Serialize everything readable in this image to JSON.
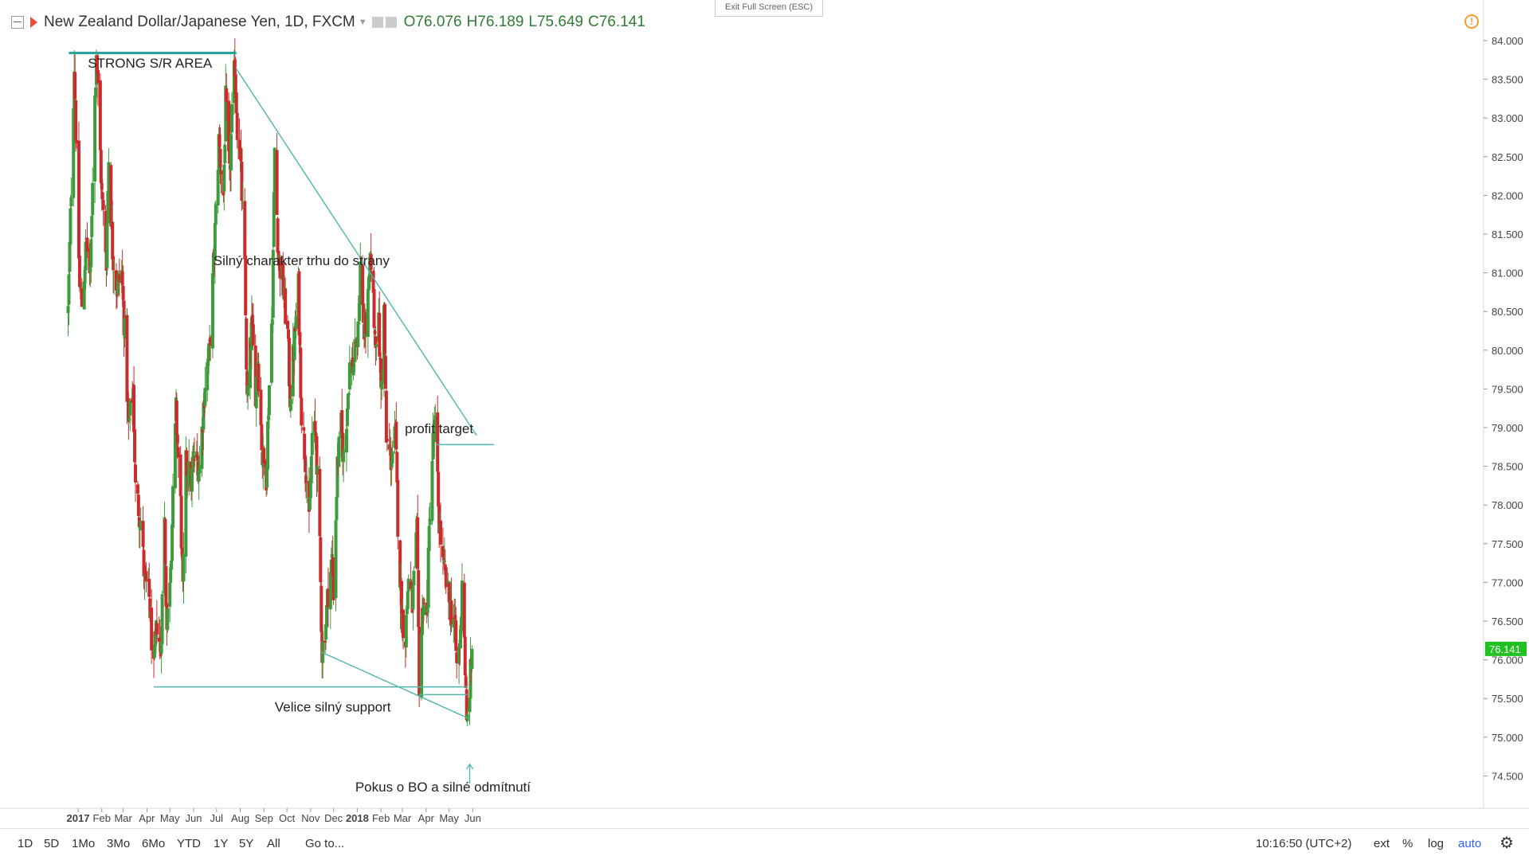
{
  "legend": {
    "symbol": "New Zealand Dollar/Japanese Yen, 1D, FXCM",
    "open": "O76.076",
    "high": "H76.189",
    "low": "L75.649",
    "close": "C76.141"
  },
  "exit_fullscreen": "Exit Full Screen (ESC)",
  "toolbar": {
    "ranges": [
      "1D",
      "5D",
      "1Mo",
      "3Mo",
      "6Mo",
      "YTD",
      "1Y",
      "5Y",
      "All"
    ],
    "goto": "Go to...",
    "time": "10:16:50 (UTC+2)",
    "ext": "ext",
    "percent": "%",
    "log": "log",
    "auto": "auto"
  },
  "colors": {
    "up": "#3c9c3c",
    "down": "#cc2b2b",
    "drawing": "#4db6ac",
    "price_tag": "#22c122"
  },
  "chart_data": {
    "type": "candlestick",
    "title": "New Zealand Dollar/Japanese Yen, 1D, FXCM",
    "xlabel": "",
    "ylabel": "",
    "ylim": [
      74.0,
      84.2
    ],
    "y_ticks": [
      "84.000",
      "83.500",
      "83.000",
      "82.500",
      "82.000",
      "81.500",
      "81.000",
      "80.500",
      "80.000",
      "79.500",
      "79.000",
      "78.500",
      "78.000",
      "77.500",
      "77.000",
      "76.500",
      "76.000",
      "75.500",
      "75.000",
      "74.500"
    ],
    "x_ticks": [
      "2017",
      "Feb",
      "Mar",
      "Apr",
      "May",
      "Jun",
      "Jul",
      "Aug",
      "Sep",
      "Oct",
      "Nov",
      "Dec",
      "2018",
      "Feb",
      "Mar",
      "Apr",
      "May",
      "Jun"
    ],
    "last_price": "76.141",
    "path": [
      [
        "2016-12-19",
        80.5
      ],
      [
        "2016-12-27",
        83.7
      ],
      [
        "2017-01-03",
        80.8
      ],
      [
        "2017-01-06",
        80.6
      ],
      [
        "2017-01-12",
        81.4
      ],
      [
        "2017-01-17",
        80.9
      ],
      [
        "2017-01-20",
        82.3
      ],
      [
        "2017-01-25",
        83.9
      ],
      [
        "2017-02-01",
        82.0
      ],
      [
        "2017-02-07",
        81.2
      ],
      [
        "2017-02-10",
        82.5
      ],
      [
        "2017-02-15",
        81.3
      ],
      [
        "2017-02-21",
        80.8
      ],
      [
        "2017-02-27",
        81.0
      ],
      [
        "2017-03-03",
        80.2
      ],
      [
        "2017-03-08",
        79.0
      ],
      [
        "2017-03-14",
        79.5
      ],
      [
        "2017-03-17",
        78.2
      ],
      [
        "2017-03-24",
        77.8
      ],
      [
        "2017-03-29",
        77.0
      ],
      [
        "2017-04-04",
        76.8
      ],
      [
        "2017-04-10",
        75.8
      ],
      [
        "2017-04-14",
        76.5
      ],
      [
        "2017-04-19",
        76.1
      ],
      [
        "2017-04-24",
        77.8
      ],
      [
        "2017-04-27",
        76.4
      ],
      [
        "2017-05-03",
        77.5
      ],
      [
        "2017-05-09",
        79.2
      ],
      [
        "2017-05-15",
        78.0
      ],
      [
        "2017-05-18",
        76.8
      ],
      [
        "2017-05-22",
        78.5
      ],
      [
        "2017-05-29",
        78.3
      ],
      [
        "2017-06-02",
        78.6
      ],
      [
        "2017-06-09",
        78.5
      ],
      [
        "2017-06-16",
        79.6
      ],
      [
        "2017-06-22",
        80.0
      ],
      [
        "2017-06-28",
        81.3
      ],
      [
        "2017-07-04",
        82.7
      ],
      [
        "2017-07-10",
        82.0
      ],
      [
        "2017-07-13",
        83.2
      ],
      [
        "2017-07-18",
        82.2
      ],
      [
        "2017-07-21",
        83.0
      ],
      [
        "2017-07-25",
        83.7
      ],
      [
        "2017-07-28",
        82.9
      ],
      [
        "2017-08-01",
        82.5
      ],
      [
        "2017-08-07",
        81.0
      ],
      [
        "2017-08-10",
        79.3
      ],
      [
        "2017-08-16",
        80.3
      ],
      [
        "2017-08-21",
        79.5
      ],
      [
        "2017-08-24",
        79.9
      ],
      [
        "2017-08-30",
        78.6
      ],
      [
        "2017-09-04",
        78.4
      ],
      [
        "2017-09-07",
        79.3
      ],
      [
        "2017-09-12",
        80.6
      ],
      [
        "2017-09-15",
        82.6
      ],
      [
        "2017-09-20",
        81.2
      ],
      [
        "2017-09-25",
        80.9
      ],
      [
        "2017-10-02",
        80.2
      ],
      [
        "2017-10-05",
        79.4
      ],
      [
        "2017-10-10",
        80.0
      ],
      [
        "2017-10-16",
        80.8
      ],
      [
        "2017-10-20",
        79.2
      ],
      [
        "2017-10-26",
        78.5
      ],
      [
        "2017-10-30",
        77.7
      ],
      [
        "2017-11-03",
        78.9
      ],
      [
        "2017-11-08",
        78.9
      ],
      [
        "2017-11-13",
        77.4
      ],
      [
        "2017-11-16",
        76.1
      ],
      [
        "2017-11-21",
        76.5
      ],
      [
        "2017-11-24",
        76.9
      ],
      [
        "2017-11-29",
        77.3
      ],
      [
        "2017-12-01",
        76.9
      ],
      [
        "2017-12-06",
        78.5
      ],
      [
        "2017-12-11",
        79.0
      ],
      [
        "2017-12-14",
        78.6
      ],
      [
        "2017-12-19",
        79.3
      ],
      [
        "2017-12-22",
        79.8
      ],
      [
        "2017-12-27",
        79.8
      ],
      [
        "2018-01-02",
        80.2
      ],
      [
        "2018-01-05",
        81.1
      ],
      [
        "2018-01-10",
        80.2
      ],
      [
        "2018-01-15",
        80.6
      ],
      [
        "2018-01-19",
        81.2
      ],
      [
        "2018-01-24",
        80.2
      ],
      [
        "2018-01-29",
        80.3
      ],
      [
        "2018-02-01",
        79.5
      ],
      [
        "2018-02-05",
        80.5
      ],
      [
        "2018-02-08",
        78.8
      ],
      [
        "2018-02-14",
        78.6
      ],
      [
        "2018-02-20",
        78.9
      ],
      [
        "2018-02-23",
        77.8
      ],
      [
        "2018-02-28",
        76.6
      ],
      [
        "2018-03-05",
        76.3
      ],
      [
        "2018-03-09",
        77.1
      ],
      [
        "2018-03-14",
        76.7
      ],
      [
        "2018-03-20",
        77.6
      ],
      [
        "2018-03-23",
        75.7
      ],
      [
        "2018-03-28",
        76.8
      ],
      [
        "2018-04-02",
        76.5
      ],
      [
        "2018-04-06",
        78.0
      ],
      [
        "2018-04-10",
        78.8
      ],
      [
        "2018-04-13",
        79.0
      ],
      [
        "2018-04-18",
        77.8
      ],
      [
        "2018-04-23",
        77.2
      ],
      [
        "2018-04-27",
        77.0
      ],
      [
        "2018-05-02",
        76.7
      ],
      [
        "2018-05-08",
        76.5
      ],
      [
        "2018-05-11",
        75.9
      ],
      [
        "2018-05-16",
        76.3
      ],
      [
        "2018-05-18",
        77.1
      ],
      [
        "2018-05-21",
        76.3
      ],
      [
        "2018-05-24",
        75.1
      ],
      [
        "2018-05-29",
        75.8
      ],
      [
        "2018-05-31",
        76.141
      ]
    ],
    "annotations": [
      {
        "text": "STRONG S/R AREA",
        "date": "2017-04-05",
        "price": 83.65
      },
      {
        "text": "Silný charakter trhu do strany",
        "date": "2017-10-20",
        "price": 81.1
      },
      {
        "text": "profit target",
        "date": "2018-04-18",
        "price": 78.93
      },
      {
        "text": "Velice silný support",
        "date": "2017-11-30",
        "price": 75.33
      },
      {
        "text": "Pokus o BO a silné odmítnutí",
        "date": "2018-04-23",
        "price": 74.3
      }
    ],
    "drawings": [
      {
        "type": "horizontal",
        "from": [
          "2016-12-20",
          83.84
        ],
        "to": [
          "2017-07-27",
          83.84
        ],
        "style": "thick"
      },
      {
        "type": "trend",
        "from": [
          "2017-07-26",
          83.65
        ],
        "to": [
          "2018-06-06",
          78.9
        ]
      },
      {
        "type": "horizontal",
        "from": [
          "2017-04-10",
          75.65
        ],
        "to": [
          "2018-05-25",
          75.65
        ]
      },
      {
        "type": "trend",
        "from": [
          "2017-11-15",
          76.1
        ],
        "to": [
          "2018-05-25",
          75.25
        ]
      },
      {
        "type": "horizontal",
        "from": [
          "2018-03-23",
          75.55
        ],
        "to": [
          "2018-05-25",
          75.55
        ]
      },
      {
        "type": "horizontal",
        "from": [
          "2018-04-14",
          78.78
        ],
        "to": [
          "2018-06-29",
          78.78
        ]
      },
      {
        "type": "arrow",
        "from": [
          "2018-05-28",
          74.4
        ],
        "to": [
          "2018-05-28",
          74.65
        ]
      }
    ]
  }
}
